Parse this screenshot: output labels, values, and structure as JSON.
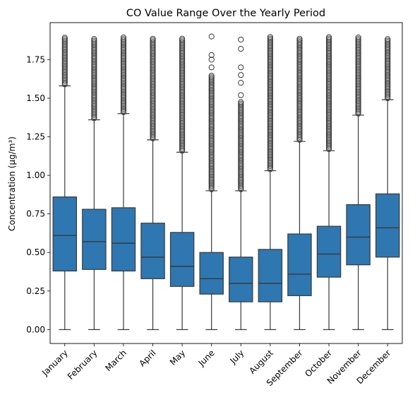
{
  "chart_data": {
    "type": "box",
    "title": "CO Value Range Over the Yearly Period",
    "xlabel": "",
    "ylabel": "Concentration (µg/m³)",
    "ylim": [
      -0.09,
      1.99
    ],
    "yticks": [
      0.0,
      0.25,
      0.5,
      0.75,
      1.0,
      1.25,
      1.5,
      1.75
    ],
    "ytick_labels": [
      "0.00",
      "0.25",
      "0.50",
      "0.75",
      "1.00",
      "1.25",
      "1.50",
      "1.75"
    ],
    "grid": false,
    "box_color": "#2e77b0",
    "line_color": "#3a3a3a",
    "categories": [
      "January",
      "February",
      "March",
      "April",
      "May",
      "June",
      "July",
      "August",
      "September",
      "October",
      "November",
      "December"
    ],
    "boxes": [
      {
        "min": 0.0,
        "q1": 0.38,
        "median": 0.61,
        "q3": 0.86,
        "whisker_high": 1.58,
        "outliers_from": 1.59,
        "outliers_to": 1.9
      },
      {
        "min": 0.0,
        "q1": 0.39,
        "median": 0.57,
        "q3": 0.78,
        "whisker_high": 1.36,
        "outliers_from": 1.37,
        "outliers_to": 1.89
      },
      {
        "min": 0.0,
        "q1": 0.38,
        "median": 0.56,
        "q3": 0.79,
        "whisker_high": 1.4,
        "outliers_from": 1.41,
        "outliers_to": 1.9
      },
      {
        "min": 0.0,
        "q1": 0.33,
        "median": 0.47,
        "q3": 0.69,
        "whisker_high": 1.23,
        "outliers_from": 1.24,
        "outliers_to": 1.89
      },
      {
        "min": 0.0,
        "q1": 0.28,
        "median": 0.41,
        "q3": 0.63,
        "whisker_high": 1.15,
        "outliers_from": 1.16,
        "outliers_to": 1.89
      },
      {
        "min": 0.0,
        "q1": 0.23,
        "median": 0.33,
        "q3": 0.5,
        "whisker_high": 0.9,
        "outliers_from": 0.91,
        "outliers_to": 1.65,
        "sparse_outliers": [
          1.7,
          1.75,
          1.78,
          1.9
        ]
      },
      {
        "min": 0.0,
        "q1": 0.18,
        "median": 0.3,
        "q3": 0.47,
        "whisker_high": 0.9,
        "outliers_from": 0.91,
        "outliers_to": 1.48,
        "sparse_outliers": [
          1.52,
          1.6,
          1.65,
          1.7,
          1.82,
          1.88
        ]
      },
      {
        "min": 0.0,
        "q1": 0.18,
        "median": 0.3,
        "q3": 0.52,
        "whisker_high": 1.03,
        "outliers_from": 1.04,
        "outliers_to": 1.9
      },
      {
        "min": 0.0,
        "q1": 0.22,
        "median": 0.36,
        "q3": 0.62,
        "whisker_high": 1.22,
        "outliers_from": 1.23,
        "outliers_to": 1.89
      },
      {
        "min": 0.0,
        "q1": 0.34,
        "median": 0.49,
        "q3": 0.67,
        "whisker_high": 1.16,
        "outliers_from": 1.17,
        "outliers_to": 1.9
      },
      {
        "min": 0.0,
        "q1": 0.42,
        "median": 0.6,
        "q3": 0.81,
        "whisker_high": 1.39,
        "outliers_from": 1.4,
        "outliers_to": 1.9
      },
      {
        "min": 0.0,
        "q1": 0.47,
        "median": 0.66,
        "q3": 0.88,
        "whisker_high": 1.49,
        "outliers_from": 1.5,
        "outliers_to": 1.89
      }
    ]
  }
}
